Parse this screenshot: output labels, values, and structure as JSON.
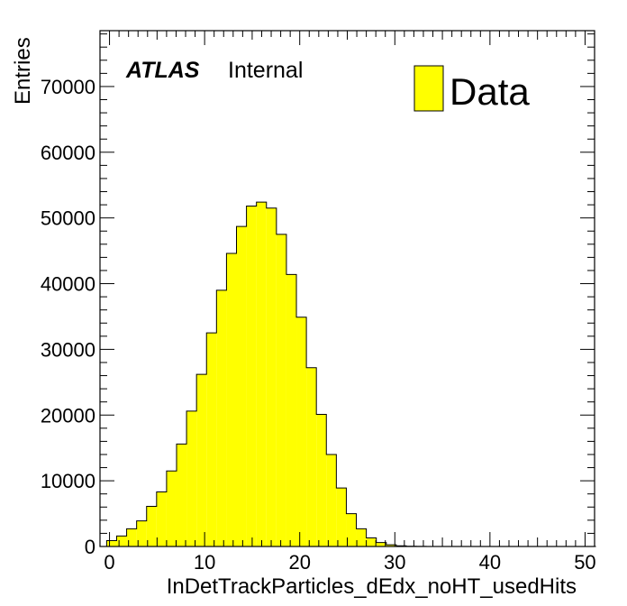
{
  "chart_data": {
    "type": "bar",
    "xlabel": "InDetTrackParticles_dEdx_noHT_usedHits",
    "ylabel": "Entries",
    "xlim": [
      -1,
      51
    ],
    "ylim": [
      0,
      78500
    ],
    "xticks": [
      0,
      10,
      20,
      30,
      40,
      50
    ],
    "yticks": [
      0,
      10000,
      20000,
      30000,
      40000,
      50000,
      60000,
      70000
    ],
    "bin_edges_start": -0.3,
    "bin_width": 1.05,
    "values": [
      900,
      1600,
      2700,
      3900,
      6100,
      8300,
      11500,
      15600,
      20600,
      26200,
      32500,
      39000,
      44600,
      48700,
      51800,
      52400,
      51500,
      47500,
      41400,
      34900,
      27200,
      20100,
      14000,
      8900,
      5000,
      2700,
      1300,
      600,
      250,
      100,
      40,
      15,
      5,
      2,
      1,
      0,
      0,
      0,
      0,
      0,
      0,
      0,
      0,
      0,
      0,
      0,
      0,
      0,
      0
    ],
    "bar_color": "#ffff00",
    "grid": false,
    "legend": {
      "placement": "top-right",
      "entries": [
        {
          "label": "Data",
          "color": "#ffff00"
        }
      ]
    },
    "annotations": {
      "atlas": "ATLAS",
      "status": "Internal"
    }
  }
}
